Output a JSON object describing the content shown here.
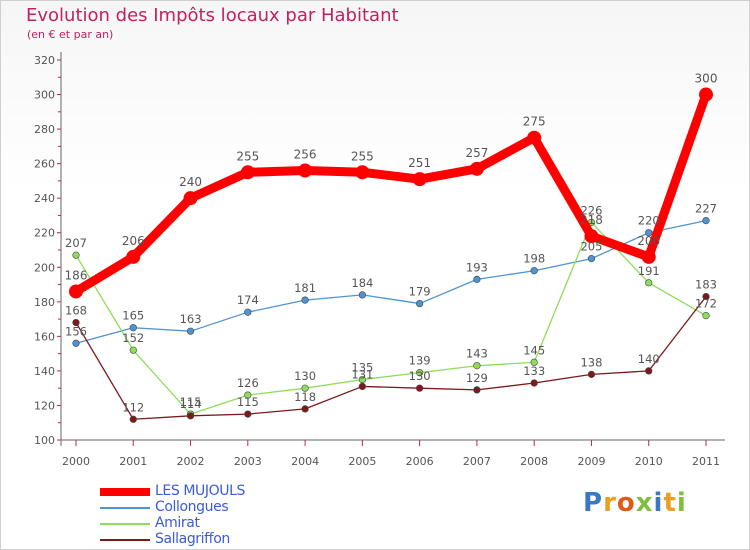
{
  "title": "Evolution des Impôts locaux par Habitant",
  "subtitle": "(en € et par an)",
  "logo": {
    "text": "Proxiti",
    "colors": [
      "#3a78c2",
      "#e8a020",
      "#e05a1a",
      "#7fbf3f",
      "#3a78c2",
      "#e8a020",
      "#7fbf3f"
    ]
  },
  "chart_data": {
    "type": "line",
    "title": "Evolution des Impôts locaux par Habitant",
    "subtitle": "(en € et par an)",
    "xlabel": "",
    "ylabel": "",
    "x": [
      "2000",
      "2001",
      "2002",
      "2003",
      "2004",
      "2005",
      "2006",
      "2007",
      "2008",
      "2009",
      "2010",
      "2011"
    ],
    "ylim": [
      100,
      320
    ],
    "yticks": [
      100,
      120,
      140,
      160,
      180,
      200,
      220,
      240,
      260,
      280,
      300,
      320
    ],
    "grid": false,
    "legend": "bottom-left",
    "series": [
      {
        "name": "LES MUJOULS",
        "color": "#ff0000",
        "highlight": true,
        "values": [
          186,
          206,
          240,
          255,
          256,
          255,
          251,
          257,
          275,
          218,
          206,
          300
        ],
        "labels": [
          "186",
          "206",
          "240",
          "255",
          "256",
          "255",
          "251",
          "257",
          "275",
          "218",
          "206",
          "300"
        ]
      },
      {
        "name": "Collongues",
        "color": "#4f94d0",
        "highlight": false,
        "values": [
          156,
          165,
          163,
          174,
          181,
          184,
          179,
          193,
          198,
          205,
          220,
          227
        ],
        "labels": [
          "156",
          "165",
          "163",
          "174",
          "181",
          "184",
          "179",
          "193",
          "198",
          "205",
          "220",
          "227"
        ]
      },
      {
        "name": "Amirat",
        "color": "#8fdc5a",
        "highlight": false,
        "values": [
          207,
          152,
          115,
          126,
          130,
          135,
          139,
          143,
          145,
          226,
          191,
          172
        ],
        "labels": [
          "207",
          "152",
          "115",
          "126",
          "130",
          "135",
          "139",
          "143",
          "145",
          "226",
          "191",
          "172"
        ]
      },
      {
        "name": "Sallagriffon",
        "color": "#7a1a1a",
        "highlight": false,
        "values": [
          168,
          112,
          114,
          115,
          118,
          131,
          130,
          129,
          133,
          138,
          140,
          183
        ],
        "labels": [
          "168",
          "112",
          "114",
          "115",
          "118",
          "131",
          "130",
          "129",
          "133",
          "138",
          "140",
          "183"
        ]
      }
    ]
  }
}
